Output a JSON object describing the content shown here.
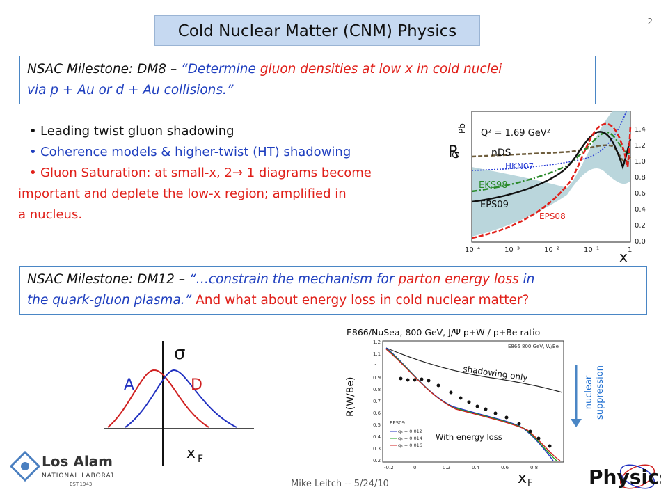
{
  "title": "Cold Nuclear Matter (CNM) Physics",
  "slide_number": "2",
  "milestone1": {
    "prefix": "NSAC Milestone: DM8 – ",
    "q1": "“",
    "det": "Determine ",
    "red": "gluon densities at low x in cold nuclei",
    "rest": "via p + Au or d + Au collisions.",
    "end": "”"
  },
  "bullets": [
    {
      "text": "Leading twist gluon shadowing",
      "color": "#111111"
    },
    {
      "text": "Coherence models & higher-twist (HT) shadowing",
      "color": "#1f3fbf"
    },
    {
      "text": "Gluon Saturation: at small-x, 2",
      "arrow": "→",
      "after": " 1 diagrams become",
      "cont1": "important and deplete the low-x region; amplified in",
      "cont2": "a nucleus.",
      "color": "#e0201a"
    }
  ],
  "milestone2": {
    "prefix": "NSAC Milestone: DM12 – ",
    "quote_blue": "“…constrain the mechanism for ",
    "red": "parton energy loss",
    "blue2": " in",
    "line2_blue": "the quark-gluon plasma.”",
    "line2_red": " And what about energy loss in cold nuclear matter?"
  },
  "shadow_plot": {
    "ylabel": "R",
    "ylabel_sub": "G",
    "ylabel_sup": "Pb",
    "xlabel": "x",
    "q2": "Q² = 1.69 GeV²",
    "x_ticks": [
      "10⁻⁴",
      "10⁻³",
      "10⁻²",
      "10⁻¹",
      "1"
    ],
    "y_ticks": [
      "0.0",
      "0.2",
      "0.4",
      "0.6",
      "0.8",
      "1.0",
      "1.2",
      "1.4"
    ],
    "labels": {
      "nds": "nDS",
      "hkn": "HKN07",
      "eks": "EKS98",
      "eps09": "EPS09",
      "eps08": "EPS08"
    }
  },
  "e866_plot": {
    "header": "E866/NuSea, 800 GeV, J/Ψ p+W / p+Be ratio",
    "inner_title": "E866 800 GeV, W/Be",
    "ylabel": "R(W/Be)",
    "xlabel": "x",
    "xlabel_sub": "F",
    "shadowing": "shadowing only",
    "energy_loss": "With energy loss",
    "y_ticks": [
      "1.2",
      "1.1",
      "1",
      "0.9",
      "0.8",
      "0.7",
      "0.6",
      "0.5",
      "0.4",
      "0.3",
      "0.2"
    ],
    "x_ticks": [
      "-0.2",
      "0",
      "0.2",
      "0.4",
      "0.6",
      "0.8"
    ],
    "legend_title": "EPS09",
    "legend": [
      "qₐ = 0.012",
      "qₐ = 0.014",
      "qₐ = 0.016"
    ],
    "suppression": [
      "nuclear",
      "suppression"
    ]
  },
  "xf_plot": {
    "sigma": "σ",
    "A": "A",
    "D": "D",
    "xf": "x",
    "xf_sub": "F"
  },
  "logo": {
    "name": "Los Alamos",
    "sub": "NATIONAL LABORATORY",
    "est": "EST.1943"
  },
  "physics_logo": "Physics",
  "footer": "Mike Leitch -- 5/24/10"
}
